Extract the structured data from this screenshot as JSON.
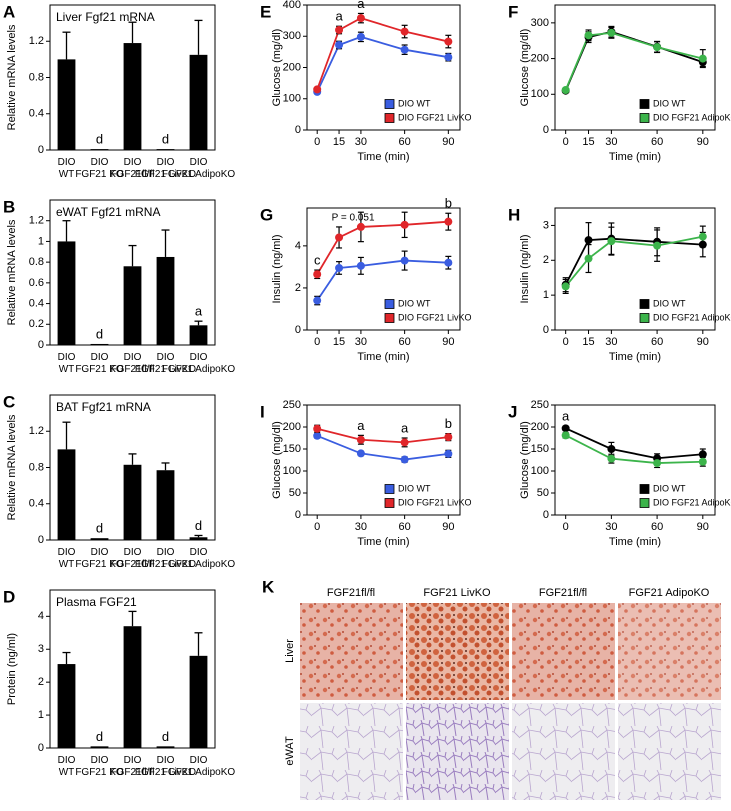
{
  "chart_data": [
    {
      "panel": "A",
      "type": "bar",
      "title": "Liver Fgf21 mRNA",
      "ylabel": "Relative mRNA levels",
      "categories": [
        "DIO WT",
        "DIO FGF21 KO",
        "DIO FGF21fl/fl",
        "DIO FGF21 LivKO",
        "DIO FGF21 AdipoKO"
      ],
      "values": [
        1.0,
        0.01,
        1.18,
        0.01,
        1.05
      ],
      "errors": [
        0.3,
        0,
        0.23,
        0,
        0.38
      ],
      "annotations": [
        null,
        "d",
        null,
        "d",
        null
      ],
      "color": "#000000",
      "ylim": [
        0,
        1.6
      ],
      "yticks": [
        0,
        0.4,
        0.8,
        1.2
      ]
    },
    {
      "panel": "B",
      "type": "bar",
      "title": "eWAT Fgf21 mRNA",
      "ylabel": "Relative mRNA levels",
      "categories": [
        "DIO WT",
        "DIO FGF21 KO",
        "DIO FGF21fl/fl",
        "DIO FGF21 LivKO",
        "DIO FGF21 AdipoKO"
      ],
      "values": [
        1.0,
        0.01,
        0.76,
        0.85,
        0.19
      ],
      "errors": [
        0.2,
        0,
        0.2,
        0.26,
        0.04
      ],
      "annotations": [
        null,
        "d",
        null,
        null,
        "a"
      ],
      "color": "#000000",
      "ylim": [
        0,
        1.4
      ],
      "yticks": [
        0,
        0.2,
        0.4,
        0.6,
        0.8,
        1,
        1.2
      ]
    },
    {
      "panel": "C",
      "type": "bar",
      "title": "BAT Fgf21 mRNA",
      "ylabel": "Relative mRNA levels",
      "categories": [
        "DIO WT",
        "DIO FGF21 KO",
        "DIO FGF21fl/fl",
        "DIO FGF21 LivKO",
        "DIO FGF21 AdipoKO"
      ],
      "values": [
        1.0,
        0.02,
        0.83,
        0.77,
        0.03
      ],
      "errors": [
        0.3,
        0,
        0.12,
        0.08,
        0.02
      ],
      "annotations": [
        null,
        "d",
        null,
        null,
        "d"
      ],
      "color": "#000000",
      "ylim": [
        0,
        1.6
      ],
      "yticks": [
        0,
        0.4,
        0.8,
        1.2
      ]
    },
    {
      "panel": "D",
      "type": "bar",
      "title": "Plasma FGF21",
      "ylabel": "Protein (ng/ml)",
      "categories": [
        "DIO WT",
        "DIO FGF21 KO",
        "DIO FGF21fl/fl",
        "DIO FGF21 LivKO",
        "DIO FGF21 AdipoKO"
      ],
      "values": [
        2.55,
        0.05,
        3.7,
        0.05,
        2.8
      ],
      "errors": [
        0.35,
        0,
        0.45,
        0,
        0.7
      ],
      "annotations": [
        null,
        "d",
        null,
        "d",
        null
      ],
      "color": "#000000",
      "ylim": [
        0,
        4.8
      ],
      "yticks": [
        0,
        1,
        2,
        3,
        4
      ]
    },
    {
      "panel": "E",
      "type": "line",
      "xlabel": "Time (min)",
      "ylabel": "Glucose (mg/dl)",
      "x": [
        0,
        15,
        30,
        60,
        90
      ],
      "xlim": [
        -7,
        98
      ],
      "xticks": [
        0,
        15,
        30,
        60,
        90
      ],
      "ylim": [
        0,
        400
      ],
      "yticks": [
        0,
        100,
        200,
        300,
        400
      ],
      "legend": "lower right",
      "series": [
        {
          "name": "DIO WT",
          "color": "#3a5de0",
          "values": [
            122,
            272,
            298,
            257,
            233
          ],
          "errors": [
            5,
            12,
            15,
            15,
            12
          ]
        },
        {
          "name": "DIO FGF21 LivKO",
          "color": "#e0262a",
          "values": [
            130,
            320,
            358,
            315,
            283
          ],
          "errors": [
            5,
            12,
            15,
            20,
            20
          ]
        }
      ],
      "annotations": [
        null,
        "a",
        "a",
        null,
        null
      ]
    },
    {
      "panel": "F",
      "type": "line",
      "xlabel": "Time (min)",
      "ylabel": "Glucose (mg/dl)",
      "x": [
        0,
        15,
        30,
        60,
        90
      ],
      "xlim": [
        -7,
        98
      ],
      "xticks": [
        0,
        15,
        30,
        60,
        90
      ],
      "ylim": [
        0,
        350
      ],
      "yticks": [
        0,
        100,
        200,
        300
      ],
      "legend": "lower right",
      "series": [
        {
          "name": "DIO WT",
          "color": "#000000",
          "values": [
            110,
            260,
            275,
            233,
            190
          ],
          "errors": [
            5,
            15,
            15,
            15,
            12
          ]
        },
        {
          "name": "DIO FGF21 AdipoKO",
          "color": "#3cb44b",
          "values": [
            112,
            265,
            272,
            232,
            200
          ],
          "errors": [
            5,
            15,
            15,
            15,
            25
          ]
        }
      ],
      "annotations": [
        null,
        null,
        null,
        null,
        null
      ]
    },
    {
      "panel": "G",
      "type": "line",
      "xlabel": "Time (min)",
      "ylabel": "Insulin (ng/ml)",
      "x": [
        0,
        15,
        30,
        60,
        90
      ],
      "xlim": [
        -7,
        98
      ],
      "xticks": [
        0,
        15,
        30,
        60,
        90
      ],
      "ylim": [
        0,
        5.8
      ],
      "yticks": [
        0,
        2,
        4
      ],
      "legend": "lower right",
      "series": [
        {
          "name": "DIO WT",
          "color": "#3a5de0",
          "values": [
            1.4,
            2.95,
            3.05,
            3.3,
            3.2
          ],
          "errors": [
            0.2,
            0.3,
            0.4,
            0.45,
            0.3
          ]
        },
        {
          "name": "DIO FGF21 LivKO",
          "color": "#e0262a",
          "values": [
            2.65,
            4.4,
            4.9,
            5.0,
            5.15
          ],
          "errors": [
            0.2,
            0.5,
            0.7,
            0.6,
            0.4
          ]
        }
      ],
      "annotations": [
        "c",
        "P = 0.051",
        null,
        null,
        "b"
      ]
    },
    {
      "panel": "H",
      "type": "line",
      "xlabel": "Time (min)",
      "ylabel": "Insulin (ng/ml)",
      "x": [
        0,
        15,
        30,
        60,
        90
      ],
      "xlim": [
        -7,
        98
      ],
      "xticks": [
        0,
        15,
        30,
        60,
        90
      ],
      "ylim": [
        0,
        3.5
      ],
      "yticks": [
        0,
        1,
        2,
        3
      ],
      "legend": "lower right",
      "series": [
        {
          "name": "DIO WT",
          "color": "#000000",
          "values": [
            1.3,
            2.58,
            2.62,
            2.53,
            2.45
          ],
          "errors": [
            0.2,
            0.5,
            0.45,
            0.4,
            0.35
          ]
        },
        {
          "name": "DIO FGF21 AdipoKO",
          "color": "#3cb44b",
          "values": [
            1.25,
            2.05,
            2.55,
            2.42,
            2.68
          ],
          "errors": [
            0.2,
            0.4,
            0.4,
            0.45,
            0.3
          ]
        }
      ],
      "annotations": [
        null,
        null,
        null,
        null,
        null
      ]
    },
    {
      "panel": "I",
      "type": "line",
      "xlabel": "Time (min)",
      "ylabel": "Glucose (mg/dl)",
      "x": [
        0,
        30,
        60,
        90
      ],
      "xlim": [
        -7,
        98
      ],
      "xticks": [
        0,
        30,
        60,
        90
      ],
      "ylim": [
        0,
        250
      ],
      "yticks": [
        0,
        50,
        100,
        150,
        200,
        250
      ],
      "legend": "lower right",
      "series": [
        {
          "name": "DIO WT",
          "color": "#3a5de0",
          "values": [
            180,
            140,
            126,
            139
          ],
          "errors": [
            5,
            5,
            6,
            8
          ]
        },
        {
          "name": "DIO FGF21 LivKO",
          "color": "#e0262a",
          "values": [
            196,
            171,
            165,
            177
          ],
          "errors": [
            8,
            10,
            10,
            8
          ]
        }
      ],
      "annotations": [
        null,
        "a",
        "a",
        "b"
      ]
    },
    {
      "panel": "J",
      "type": "line",
      "xlabel": "Time (min)",
      "ylabel": "Glucose (mg/dl)",
      "x": [
        0,
        30,
        60,
        90
      ],
      "xlim": [
        -7,
        98
      ],
      "xticks": [
        0,
        30,
        60,
        90
      ],
      "ylim": [
        0,
        250
      ],
      "yticks": [
        0,
        50,
        100,
        150,
        200,
        250
      ],
      "legend": "lower right",
      "series": [
        {
          "name": "DIO WT",
          "color": "#000000",
          "values": [
            197,
            150,
            129,
            138
          ],
          "errors": [
            5,
            15,
            10,
            12
          ]
        },
        {
          "name": "DIO FGF21 AdipoKO",
          "color": "#3cb44b",
          "values": [
            181,
            128,
            118,
            121
          ],
          "errors": [
            6,
            10,
            10,
            10
          ]
        }
      ],
      "annotations": [
        "a",
        null,
        null,
        null
      ]
    }
  ],
  "histology": {
    "panel": "K",
    "columns": [
      "FGF21fl/fl",
      "FGF21 LivKO",
      "FGF21fl/fl",
      "FGF21 AdipoKO"
    ],
    "rows": [
      "Liver",
      "eWAT"
    ]
  }
}
